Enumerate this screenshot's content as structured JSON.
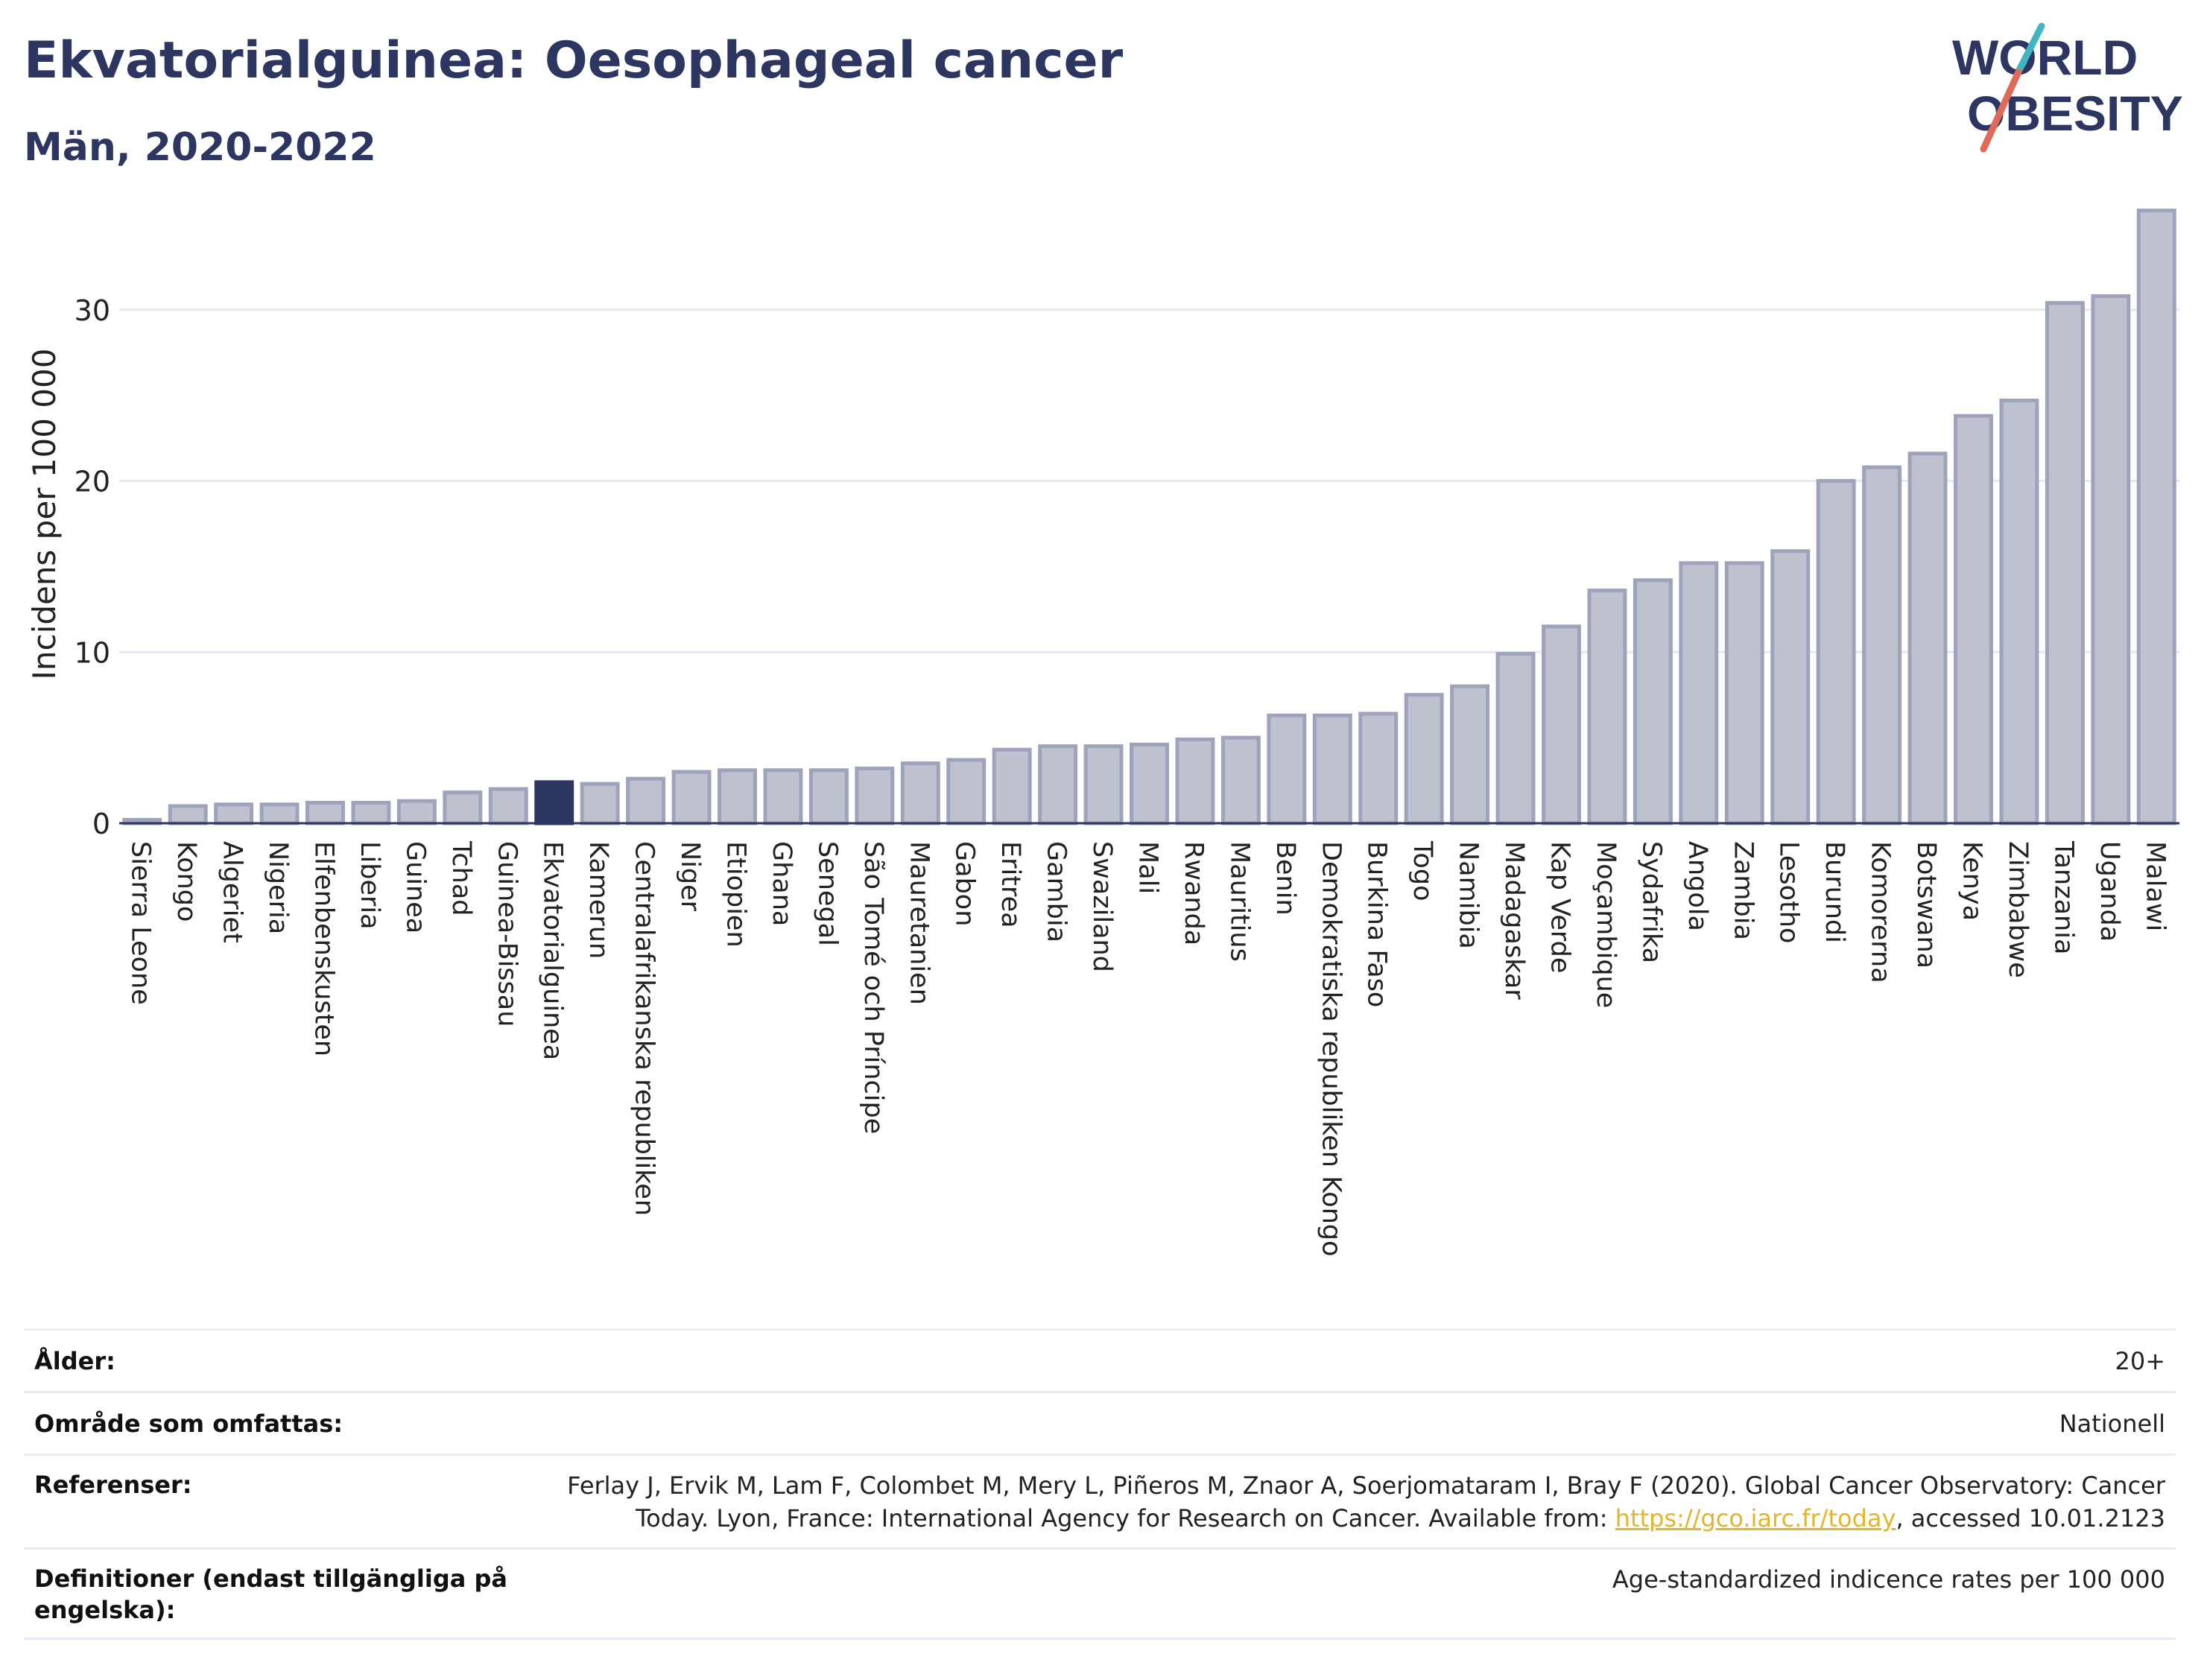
{
  "header": {
    "title": "Ekvatorialguinea: Oesophageal cancer",
    "subtitle": "Män, 2020-2022"
  },
  "logo": {
    "line1": "WORLD",
    "line2": "OBESITY"
  },
  "chart_data": {
    "type": "bar",
    "ylabel": "Incidens per 100 000",
    "ylim": [
      0,
      37
    ],
    "yticks": [
      0,
      10,
      20,
      30
    ],
    "grid": true,
    "highlight": "Ekvatorialguinea",
    "colors": {
      "bar": "#bec1ce",
      "bar_edge": "#9ea3bb",
      "highlight": "#2d3561",
      "grid": "#e6e9f0",
      "axis": "#2d3561"
    },
    "categories": [
      "Sierra Leone",
      "Kongo",
      "Algeriet",
      "Nigeria",
      "Elfenbenskusten",
      "Liberia",
      "Guinea",
      "Tchad",
      "Guinea-Bissau",
      "Ekvatorialguinea",
      "Kamerun",
      "Centralafrikanska republiken",
      "Niger",
      "Etiopien",
      "Ghana",
      "Senegal",
      "São Tomé och Príncipe",
      "Mauretanien",
      "Gabon",
      "Eritrea",
      "Gambia",
      "Swaziland",
      "Mali",
      "Rwanda",
      "Mauritius",
      "Benin",
      "Demokratiska republiken Kongo",
      "Burkina Faso",
      "Togo",
      "Namibia",
      "Madagaskar",
      "Kap Verde",
      "Moçambique",
      "Sydafrika",
      "Angola",
      "Zambia",
      "Lesotho",
      "Burundi",
      "Komorerna",
      "Botswana",
      "Kenya",
      "Zimbabwe",
      "Tanzania",
      "Uganda",
      "Malawi"
    ],
    "values": [
      0.2,
      1.0,
      1.1,
      1.1,
      1.2,
      1.2,
      1.3,
      1.8,
      2.0,
      2.4,
      2.3,
      2.6,
      3.0,
      3.1,
      3.1,
      3.1,
      3.2,
      3.5,
      3.7,
      4.3,
      4.5,
      4.5,
      4.6,
      4.9,
      5.0,
      6.3,
      6.3,
      6.4,
      7.5,
      8.0,
      9.9,
      11.5,
      13.6,
      14.2,
      15.2,
      15.2,
      15.9,
      20.0,
      20.8,
      21.6,
      23.8,
      24.7,
      30.4,
      30.8,
      35.8
    ]
  },
  "info": {
    "rows": [
      {
        "label": "Ålder:",
        "value": "20+"
      },
      {
        "label": "Område som omfattas:",
        "value": "Nationell"
      },
      {
        "label": "Referenser:",
        "value_line1": "Ferlay J, Ervik M, Lam F, Colombet M, Mery L, Piñeros M, Znaor A, Soerjomataram I, Bray F (2020). Global Cancer Observatory: Cancer",
        "value_line2_pre": "Today. Lyon, France: International Agency for Research on Cancer. Available from: ",
        "link": "https://gco.iarc.fr/today",
        "value_line2_post": ", accessed 10.01.2123"
      },
      {
        "label_line1": "Definitioner (endast tillgängliga på",
        "label_line2": "engelska):",
        "value": "Age-standardized indicence rates per 100 000"
      }
    ]
  }
}
